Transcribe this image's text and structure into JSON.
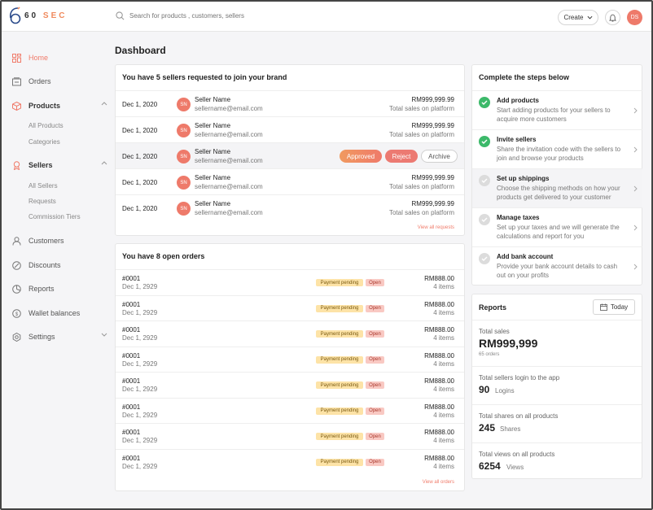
{
  "brand": {
    "name_digits": "60",
    "name_letters": "SEC",
    "accent": "#f07b6a"
  },
  "topbar": {
    "search_placeholder": "Search for products , customers, sellers",
    "create_label": "Create",
    "avatar_initials": "DS"
  },
  "sidebar": {
    "home": "Home",
    "orders": "Orders",
    "products": "Products",
    "products_sub": [
      "All Products",
      "Categories"
    ],
    "sellers": "Sellers",
    "sellers_sub": [
      "All Sellers",
      "Requests",
      "Commission Tiers"
    ],
    "customers": "Customers",
    "discounts": "Discounts",
    "reports": "Reports",
    "wallet": "Wallet balances",
    "settings": "Settings"
  },
  "page_title": "Dashboard",
  "requests": {
    "title": "You have 5 sellers requested to join your brand",
    "view_all": "View all requests",
    "rows": [
      {
        "date": "Dec 1, 2020",
        "initials": "SN",
        "name": "Seller Name",
        "email": "sellername@email.com",
        "amount": "RM999,999.99",
        "amount_label": "Total sales on platform"
      },
      {
        "date": "Dec 1, 2020",
        "initials": "SN",
        "name": "Seller Name",
        "email": "sellername@email.com",
        "amount": "RM999,999.99",
        "amount_label": "Total sales on platform"
      },
      {
        "date": "Dec 1, 2020",
        "initials": "SN",
        "name": "Seller Name",
        "email": "sellername@email.com",
        "approve": "Approved",
        "reject": "Reject",
        "archive": "Archive"
      },
      {
        "date": "Dec 1, 2020",
        "initials": "SN",
        "name": "Seller Name",
        "email": "sellername@email.com",
        "amount": "RM999,999.99",
        "amount_label": "Total sales on platform"
      },
      {
        "date": "Dec 1, 2020",
        "initials": "SN",
        "name": "Seller Name",
        "email": "sellername@email.com",
        "amount": "RM999,999.99",
        "amount_label": "Total sales on platform"
      }
    ]
  },
  "orders": {
    "title": "You have 8 open orders",
    "view_all": "View all orders",
    "rows": [
      {
        "id": "#0001",
        "date": "Dec 1, 2929",
        "payment": "Payment pending",
        "status": "Open",
        "amount": "RM888.00",
        "items": "4 items"
      },
      {
        "id": "#0001",
        "date": "Dec 1, 2929",
        "payment": "Payment pending",
        "status": "Open",
        "amount": "RM888.00",
        "items": "4 items"
      },
      {
        "id": "#0001",
        "date": "Dec 1, 2929",
        "payment": "Payment pending",
        "status": "Open",
        "amount": "RM888.00",
        "items": "4 items"
      },
      {
        "id": "#0001",
        "date": "Dec 1, 2929",
        "payment": "Payment pending",
        "status": "Open",
        "amount": "RM888.00",
        "items": "4 items"
      },
      {
        "id": "#0001",
        "date": "Dec 1, 2929",
        "payment": "Payment pending",
        "status": "Open",
        "amount": "RM888.00",
        "items": "4 items"
      },
      {
        "id": "#0001",
        "date": "Dec 1, 2929",
        "payment": "Payment pending",
        "status": "Open",
        "amount": "RM888.00",
        "items": "4 items"
      },
      {
        "id": "#0001",
        "date": "Dec 1, 2929",
        "payment": "Payment pending",
        "status": "Open",
        "amount": "RM888.00",
        "items": "4 items"
      },
      {
        "id": "#0001",
        "date": "Dec 1, 2929",
        "payment": "Payment pending",
        "status": "Open",
        "amount": "RM888.00",
        "items": "4 items"
      }
    ]
  },
  "steps": {
    "title": "Complete the steps below",
    "items": [
      {
        "title": "Add products",
        "desc": "Start adding products for your sellers to acquire more customers",
        "done": true
      },
      {
        "title": "Invite sellers",
        "desc": "Share the invitation code with the sellers to join and browse your products",
        "done": true
      },
      {
        "title": "Set up shippings",
        "desc": "Choose the shipping methods on how your products get delivered to your customer",
        "done": false
      },
      {
        "title": "Manage taxes",
        "desc": "Set up your taxes and we will generate the calculations and report for you",
        "done": false
      },
      {
        "title": "Add bank account",
        "desc": "Provide your bank account details to cash out on your profits",
        "done": false
      }
    ]
  },
  "reports": {
    "title": "Reports",
    "range_label": "Today",
    "total_sales_label": "Total sales",
    "total_sales": "RM999,999",
    "orders_count": "65 orders",
    "logins_label": "Total sellers login to the app",
    "logins": "90",
    "logins_unit": "Logins",
    "shares_label": "Total shares on all products",
    "shares": "245",
    "shares_unit": "Shares",
    "views_label": "Total views on all products",
    "views": "6254",
    "views_unit": "Views"
  }
}
